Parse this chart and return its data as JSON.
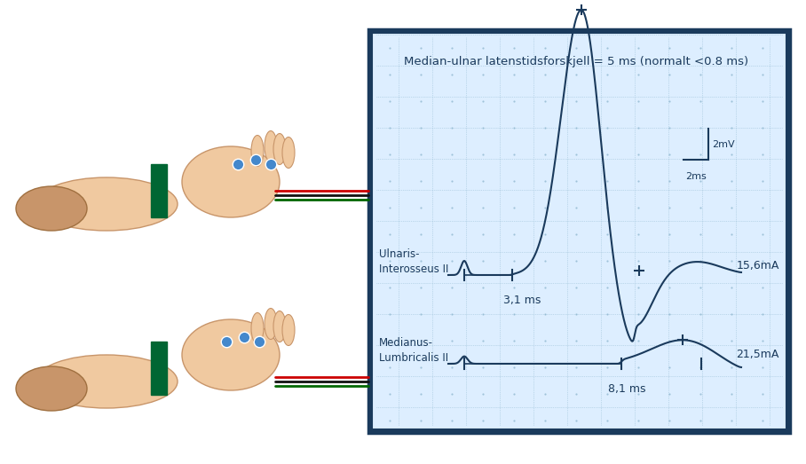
{
  "title": "Median-ulnar latenstidsforskjell = 5 ms (normalt <0.8 ms)",
  "background_color": "#ffffff",
  "panel_bg": "#ddeeff",
  "panel_border": "#1a3a5c",
  "ulnar_label": "Ulnaris-\nInterosseus II",
  "median_label": "Medianus-\nLumbricalis II",
  "ulnar_latency_label": "3,1 ms",
  "median_latency_label": "8,1 ms",
  "ulnar_current": "15,6mA",
  "median_current": "21,5mA",
  "scale_mv": "2mV",
  "scale_ms": "2ms",
  "signal_color": "#1a3a5c",
  "dot_color": "#4477aa",
  "wire_colors": [
    "#cc0000",
    "#111111",
    "#006600"
  ],
  "band_color": "#006633"
}
